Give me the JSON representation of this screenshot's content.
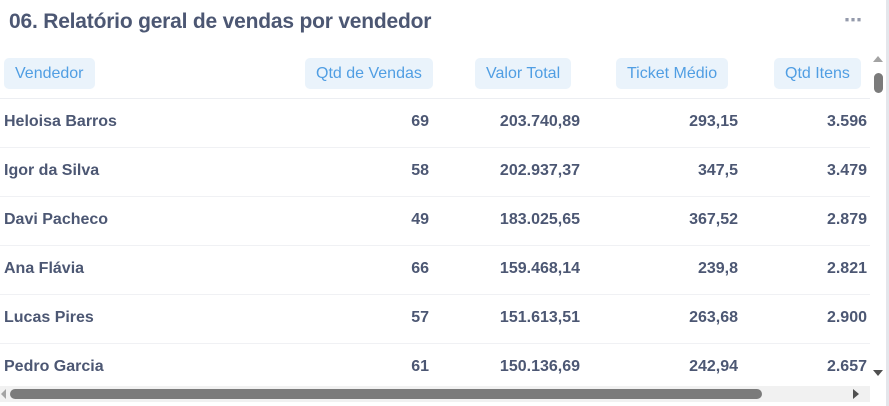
{
  "card": {
    "title": "06. Relatório geral de vendas por vendedor",
    "more_icon": "⋯"
  },
  "table": {
    "columns": [
      "Vendedor",
      "Qtd de Vendas",
      "Valor Total",
      "Ticket Médio",
      "Qtd Itens"
    ],
    "rows": [
      [
        "Heloisa Barros",
        "69",
        "203.740,89",
        "293,15",
        "3.596"
      ],
      [
        "Igor da Silva",
        "58",
        "202.937,37",
        "347,5",
        "3.479"
      ],
      [
        "Davi Pacheco",
        "49",
        "183.025,65",
        "367,52",
        "2.879"
      ],
      [
        "Ana Flávia",
        "66",
        "159.468,14",
        "239,8",
        "2.821"
      ],
      [
        "Lucas Pires",
        "57",
        "151.613,51",
        "263,68",
        "2.900"
      ],
      [
        "Pedro Garcia",
        "61",
        "150.136,69",
        "242,94",
        "2.657"
      ]
    ]
  },
  "colors": {
    "header_text": "#509ee3",
    "header_bg": "#eaf3fb",
    "body_text": "#4c5773"
  },
  "icons": {
    "more": "ellipsis-icon",
    "scroll_up": "arrow-up-icon",
    "scroll_down": "arrow-down-icon",
    "scroll_left": "arrow-left-icon",
    "scroll_right": "arrow-right-icon"
  }
}
